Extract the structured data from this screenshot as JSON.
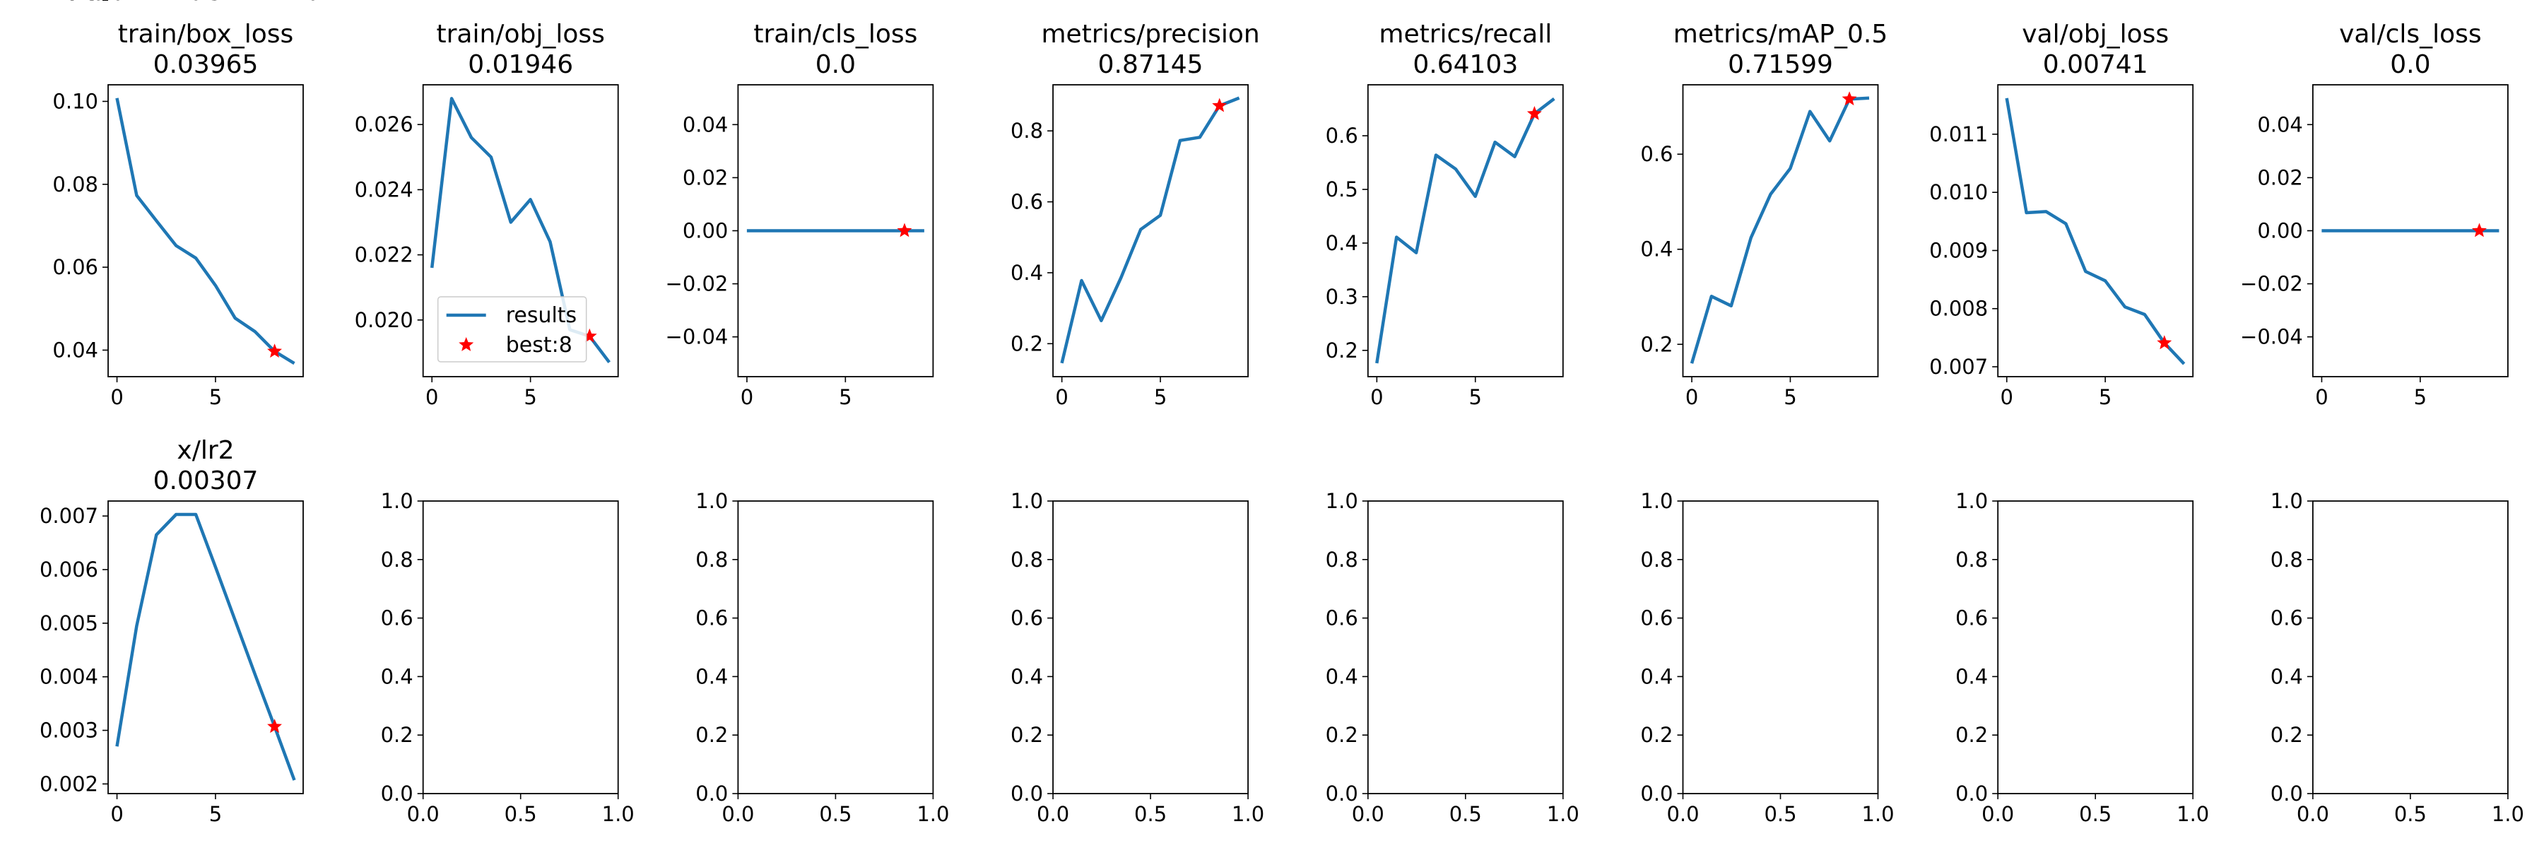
{
  "series_style": {
    "line_color": "#1f77b4",
    "best_marker_color": "#ff0000",
    "best_marker_shape": "star-icon"
  },
  "legend": {
    "entries": [
      {
        "label": "results",
        "kind": "line"
      },
      {
        "label": "best:8",
        "kind": "marker"
      }
    ],
    "placement": "lower-left of train/obj_loss panel"
  },
  "chart_data": [
    {
      "type": "line",
      "title": "train/box_loss",
      "subtitle": "0.03965",
      "x": [
        0,
        1,
        2,
        3,
        4,
        5,
        6,
        7,
        8,
        9
      ],
      "values": [
        0.1008,
        0.0773,
        0.0712,
        0.0652,
        0.0622,
        0.0556,
        0.0477,
        0.0445,
        0.0397,
        0.0368
      ],
      "best": {
        "x": 8,
        "y": 0.0397
      },
      "xlim": [
        -0.45,
        9.45
      ],
      "ylim": [
        0.0336,
        0.104
      ],
      "xticks": [
        {
          "v": 0,
          "label": "0"
        },
        {
          "v": 5,
          "label": "5"
        }
      ],
      "yticks": [
        {
          "v": 0.04,
          "label": "0.04"
        },
        {
          "v": 0.06,
          "label": "0.06"
        },
        {
          "v": 0.08,
          "label": "0.08"
        },
        {
          "v": 0.1,
          "label": "0.10"
        }
      ]
    },
    {
      "type": "line",
      "title": "train/obj_loss",
      "subtitle": "0.01946",
      "x": [
        0,
        1,
        2,
        3,
        4,
        5,
        6,
        7,
        8,
        9
      ],
      "values": [
        0.0216,
        0.0268,
        0.0256,
        0.025,
        0.023,
        0.0237,
        0.0224,
        0.0197,
        0.0195,
        0.0187
      ],
      "best": {
        "x": 8,
        "y": 0.0195
      },
      "xlim": [
        -0.45,
        9.45
      ],
      "ylim": [
        0.01826,
        0.02722
      ],
      "legend": true,
      "xticks": [
        {
          "v": 0,
          "label": "0"
        },
        {
          "v": 5,
          "label": "5"
        }
      ],
      "yticks": [
        {
          "v": 0.02,
          "label": "0.020"
        },
        {
          "v": 0.022,
          "label": "0.022"
        },
        {
          "v": 0.024,
          "label": "0.024"
        },
        {
          "v": 0.026,
          "label": "0.026"
        }
      ]
    },
    {
      "type": "line",
      "title": "train/cls_loss",
      "subtitle": "0.0",
      "x": [
        0,
        1,
        2,
        3,
        4,
        5,
        6,
        7,
        8,
        9
      ],
      "values": [
        0,
        0,
        0,
        0,
        0,
        0,
        0,
        0,
        0,
        0
      ],
      "best": {
        "x": 8,
        "y": 0
      },
      "xlim": [
        -0.45,
        9.45
      ],
      "ylim": [
        -0.055,
        0.055
      ],
      "xticks": [
        {
          "v": 0,
          "label": "0"
        },
        {
          "v": 5,
          "label": "5"
        }
      ],
      "yticks": [
        {
          "v": -0.04,
          "label": "−0.04"
        },
        {
          "v": -0.02,
          "label": "−0.02"
        },
        {
          "v": 0,
          "label": "0.00"
        },
        {
          "v": 0.02,
          "label": "0.02"
        },
        {
          "v": 0.04,
          "label": "0.04"
        }
      ]
    },
    {
      "type": "line",
      "title": "metrics/precision",
      "subtitle": "0.87145",
      "x": [
        0,
        1,
        2,
        3,
        4,
        5,
        6,
        7,
        8,
        9
      ],
      "values": [
        0.145,
        0.378,
        0.265,
        0.386,
        0.522,
        0.562,
        0.773,
        0.782,
        0.871,
        0.893
      ],
      "best": {
        "x": 8,
        "y": 0.871
      },
      "xlim": [
        -0.45,
        9.45
      ],
      "ylim": [
        0.107,
        0.93
      ],
      "xticks": [
        {
          "v": 0,
          "label": "0"
        },
        {
          "v": 5,
          "label": "5"
        }
      ],
      "yticks": [
        {
          "v": 0.2,
          "label": "0.2"
        },
        {
          "v": 0.4,
          "label": "0.4"
        },
        {
          "v": 0.6,
          "label": "0.6"
        },
        {
          "v": 0.8,
          "label": "0.8"
        }
      ]
    },
    {
      "type": "line",
      "title": "metrics/recall",
      "subtitle": "0.64103",
      "x": [
        0,
        1,
        2,
        3,
        4,
        5,
        6,
        7,
        8,
        9
      ],
      "values": [
        0.176,
        0.411,
        0.382,
        0.564,
        0.538,
        0.487,
        0.588,
        0.561,
        0.641,
        0.669
      ],
      "best": {
        "x": 8,
        "y": 0.641
      },
      "xlim": [
        -0.45,
        9.45
      ],
      "ylim": [
        0.151,
        0.695
      ],
      "xticks": [
        {
          "v": 0,
          "label": "0"
        },
        {
          "v": 5,
          "label": "5"
        }
      ],
      "yticks": [
        {
          "v": 0.2,
          "label": "0.2"
        },
        {
          "v": 0.3,
          "label": "0.3"
        },
        {
          "v": 0.4,
          "label": "0.4"
        },
        {
          "v": 0.5,
          "label": "0.5"
        },
        {
          "v": 0.6,
          "label": "0.6"
        }
      ]
    },
    {
      "type": "line",
      "title": "metrics/mAP_0.5",
      "subtitle": "0.71599",
      "x": [
        0,
        1,
        2,
        3,
        4,
        5,
        6,
        7,
        8,
        9
      ],
      "values": [
        0.16,
        0.301,
        0.281,
        0.424,
        0.516,
        0.57,
        0.69,
        0.628,
        0.716,
        0.718
      ],
      "best": {
        "x": 8,
        "y": 0.716
      },
      "xlim": [
        -0.45,
        9.45
      ],
      "ylim": [
        0.132,
        0.746
      ],
      "xticks": [
        {
          "v": 0,
          "label": "0"
        },
        {
          "v": 5,
          "label": "5"
        }
      ],
      "yticks": [
        {
          "v": 0.2,
          "label": "0.2"
        },
        {
          "v": 0.4,
          "label": "0.4"
        },
        {
          "v": 0.6,
          "label": "0.6"
        }
      ]
    },
    {
      "type": "line",
      "title": "val/obj_loss",
      "subtitle": "0.00741",
      "x": [
        0,
        1,
        2,
        3,
        4,
        5,
        6,
        7,
        8,
        9
      ],
      "values": [
        0.01162,
        0.00965,
        0.00967,
        0.00946,
        0.00864,
        0.00848,
        0.00803,
        0.0079,
        0.00741,
        0.00705
      ],
      "best": {
        "x": 8,
        "y": 0.00741
      },
      "xlim": [
        -0.45,
        9.45
      ],
      "ylim": [
        0.00683,
        0.01185
      ],
      "xticks": [
        {
          "v": 0,
          "label": "0"
        },
        {
          "v": 5,
          "label": "5"
        }
      ],
      "yticks": [
        {
          "v": 0.007,
          "label": "0.007"
        },
        {
          "v": 0.008,
          "label": "0.008"
        },
        {
          "v": 0.009,
          "label": "0.009"
        },
        {
          "v": 0.01,
          "label": "0.010"
        },
        {
          "v": 0.011,
          "label": "0.011"
        }
      ]
    },
    {
      "type": "line",
      "title": "val/cls_loss",
      "subtitle": "0.0",
      "x": [
        0,
        1,
        2,
        3,
        4,
        5,
        6,
        7,
        8,
        9
      ],
      "values": [
        0,
        0,
        0,
        0,
        0,
        0,
        0,
        0,
        0,
        0
      ],
      "best": {
        "x": 8,
        "y": 0
      },
      "xlim": [
        -0.45,
        9.45
      ],
      "ylim": [
        -0.055,
        0.055
      ],
      "xticks": [
        {
          "v": 0,
          "label": "0"
        },
        {
          "v": 5,
          "label": "5"
        }
      ],
      "yticks": [
        {
          "v": -0.04,
          "label": "−0.04"
        },
        {
          "v": -0.02,
          "label": "−0.02"
        },
        {
          "v": 0,
          "label": "0.00"
        },
        {
          "v": 0.02,
          "label": "0.02"
        },
        {
          "v": 0.04,
          "label": "0.04"
        }
      ]
    },
    {
      "type": "line",
      "title": "x/lr2",
      "subtitle": "0.00307",
      "x": [
        0,
        1,
        2,
        3,
        4,
        5,
        6,
        7,
        8,
        9
      ],
      "values": [
        0.0027,
        0.00495,
        0.00665,
        0.00703,
        0.00703,
        0.00605,
        0.00505,
        0.00405,
        0.00307,
        0.00207
      ],
      "best": {
        "x": 8,
        "y": 0.00307
      },
      "xlim": [
        -0.45,
        9.45
      ],
      "ylim": [
        0.00182,
        0.00728
      ],
      "xticks": [
        {
          "v": 0,
          "label": "0"
        },
        {
          "v": 5,
          "label": "5"
        }
      ],
      "yticks": [
        {
          "v": 0.002,
          "label": "0.002"
        },
        {
          "v": 0.003,
          "label": "0.003"
        },
        {
          "v": 0.004,
          "label": "0.004"
        },
        {
          "v": 0.005,
          "label": "0.005"
        },
        {
          "v": 0.006,
          "label": "0.006"
        },
        {
          "v": 0.007,
          "label": "0.007"
        }
      ]
    },
    {
      "type": "line",
      "title": "",
      "subtitle": "",
      "empty": true,
      "xlim": [
        0,
        1
      ],
      "ylim": [
        0,
        1
      ],
      "xticks": [
        {
          "v": 0,
          "label": "0.0"
        },
        {
          "v": 0.5,
          "label": "0.5"
        },
        {
          "v": 1,
          "label": "1.0"
        }
      ],
      "yticks": [
        {
          "v": 0,
          "label": "0.0"
        },
        {
          "v": 0.2,
          "label": "0.2"
        },
        {
          "v": 0.4,
          "label": "0.4"
        },
        {
          "v": 0.6,
          "label": "0.6"
        },
        {
          "v": 0.8,
          "label": "0.8"
        },
        {
          "v": 1,
          "label": "1.0"
        }
      ]
    },
    {
      "type": "line",
      "title": "",
      "subtitle": "",
      "empty": true,
      "xlim": [
        0,
        1
      ],
      "ylim": [
        0,
        1
      ],
      "xticks": [
        {
          "v": 0,
          "label": "0.0"
        },
        {
          "v": 0.5,
          "label": "0.5"
        },
        {
          "v": 1,
          "label": "1.0"
        }
      ],
      "yticks": [
        {
          "v": 0,
          "label": "0.0"
        },
        {
          "v": 0.2,
          "label": "0.2"
        },
        {
          "v": 0.4,
          "label": "0.4"
        },
        {
          "v": 0.6,
          "label": "0.6"
        },
        {
          "v": 0.8,
          "label": "0.8"
        },
        {
          "v": 1,
          "label": "1.0"
        }
      ]
    },
    {
      "type": "line",
      "title": "",
      "subtitle": "",
      "empty": true,
      "xlim": [
        0,
        1
      ],
      "ylim": [
        0,
        1
      ],
      "xticks": [
        {
          "v": 0,
          "label": "0.0"
        },
        {
          "v": 0.5,
          "label": "0.5"
        },
        {
          "v": 1,
          "label": "1.0"
        }
      ],
      "yticks": [
        {
          "v": 0,
          "label": "0.0"
        },
        {
          "v": 0.2,
          "label": "0.2"
        },
        {
          "v": 0.4,
          "label": "0.4"
        },
        {
          "v": 0.6,
          "label": "0.6"
        },
        {
          "v": 0.8,
          "label": "0.8"
        },
        {
          "v": 1,
          "label": "1.0"
        }
      ]
    },
    {
      "type": "line",
      "title": "",
      "subtitle": "",
      "empty": true,
      "xlim": [
        0,
        1
      ],
      "ylim": [
        0,
        1
      ],
      "xticks": [
        {
          "v": 0,
          "label": "0.0"
        },
        {
          "v": 0.5,
          "label": "0.5"
        },
        {
          "v": 1,
          "label": "1.0"
        }
      ],
      "yticks": [
        {
          "v": 0,
          "label": "0.0"
        },
        {
          "v": 0.2,
          "label": "0.2"
        },
        {
          "v": 0.4,
          "label": "0.4"
        },
        {
          "v": 0.6,
          "label": "0.6"
        },
        {
          "v": 0.8,
          "label": "0.8"
        },
        {
          "v": 1,
          "label": "1.0"
        }
      ]
    },
    {
      "type": "line",
      "title": "",
      "subtitle": "",
      "empty": true,
      "xlim": [
        0,
        1
      ],
      "ylim": [
        0,
        1
      ],
      "xticks": [
        {
          "v": 0,
          "label": "0.0"
        },
        {
          "v": 0.5,
          "label": "0.5"
        },
        {
          "v": 1,
          "label": "1.0"
        }
      ],
      "yticks": [
        {
          "v": 0,
          "label": "0.0"
        },
        {
          "v": 0.2,
          "label": "0.2"
        },
        {
          "v": 0.4,
          "label": "0.4"
        },
        {
          "v": 0.6,
          "label": "0.6"
        },
        {
          "v": 0.8,
          "label": "0.8"
        },
        {
          "v": 1,
          "label": "1.0"
        }
      ]
    },
    {
      "type": "line",
      "title": "",
      "subtitle": "",
      "empty": true,
      "xlim": [
        0,
        1
      ],
      "ylim": [
        0,
        1
      ],
      "xticks": [
        {
          "v": 0,
          "label": "0.0"
        },
        {
          "v": 0.5,
          "label": "0.5"
        },
        {
          "v": 1,
          "label": "1.0"
        }
      ],
      "yticks": [
        {
          "v": 0,
          "label": "0.0"
        },
        {
          "v": 0.2,
          "label": "0.2"
        },
        {
          "v": 0.4,
          "label": "0.4"
        },
        {
          "v": 0.6,
          "label": "0.6"
        },
        {
          "v": 0.8,
          "label": "0.8"
        },
        {
          "v": 1,
          "label": "1.0"
        }
      ]
    },
    {
      "type": "line",
      "title": "",
      "subtitle": "",
      "empty": true,
      "xlim": [
        0,
        1
      ],
      "ylim": [
        0,
        1
      ],
      "xticks": [
        {
          "v": 0,
          "label": "0.0"
        },
        {
          "v": 0.5,
          "label": "0.5"
        },
        {
          "v": 1,
          "label": "1.0"
        }
      ],
      "yticks": [
        {
          "v": 0,
          "label": "0.0"
        },
        {
          "v": 0.2,
          "label": "0.2"
        },
        {
          "v": 0.4,
          "label": "0.4"
        },
        {
          "v": 0.6,
          "label": "0.6"
        },
        {
          "v": 0.8,
          "label": "0.8"
        },
        {
          "v": 1,
          "label": "1.0"
        }
      ]
    },
    {
      "type": "line",
      "title": "",
      "subtitle": "",
      "empty": true,
      "xlim": [
        0,
        1
      ],
      "ylim": [
        0,
        1
      ],
      "xticks": [
        {
          "v": 0,
          "label": "0.0"
        },
        {
          "v": 0.5,
          "label": "0.5"
        },
        {
          "v": 1,
          "label": "1.0"
        }
      ],
      "yticks": [
        {
          "v": 0,
          "label": "0.0"
        },
        {
          "v": 0.2,
          "label": "0.2"
        },
        {
          "v": 0.4,
          "label": "0.4"
        },
        {
          "v": 0.6,
          "label": "0.6"
        },
        {
          "v": 0.8,
          "label": "0.8"
        },
        {
          "v": 1,
          "label": "1.0"
        }
      ]
    }
  ]
}
